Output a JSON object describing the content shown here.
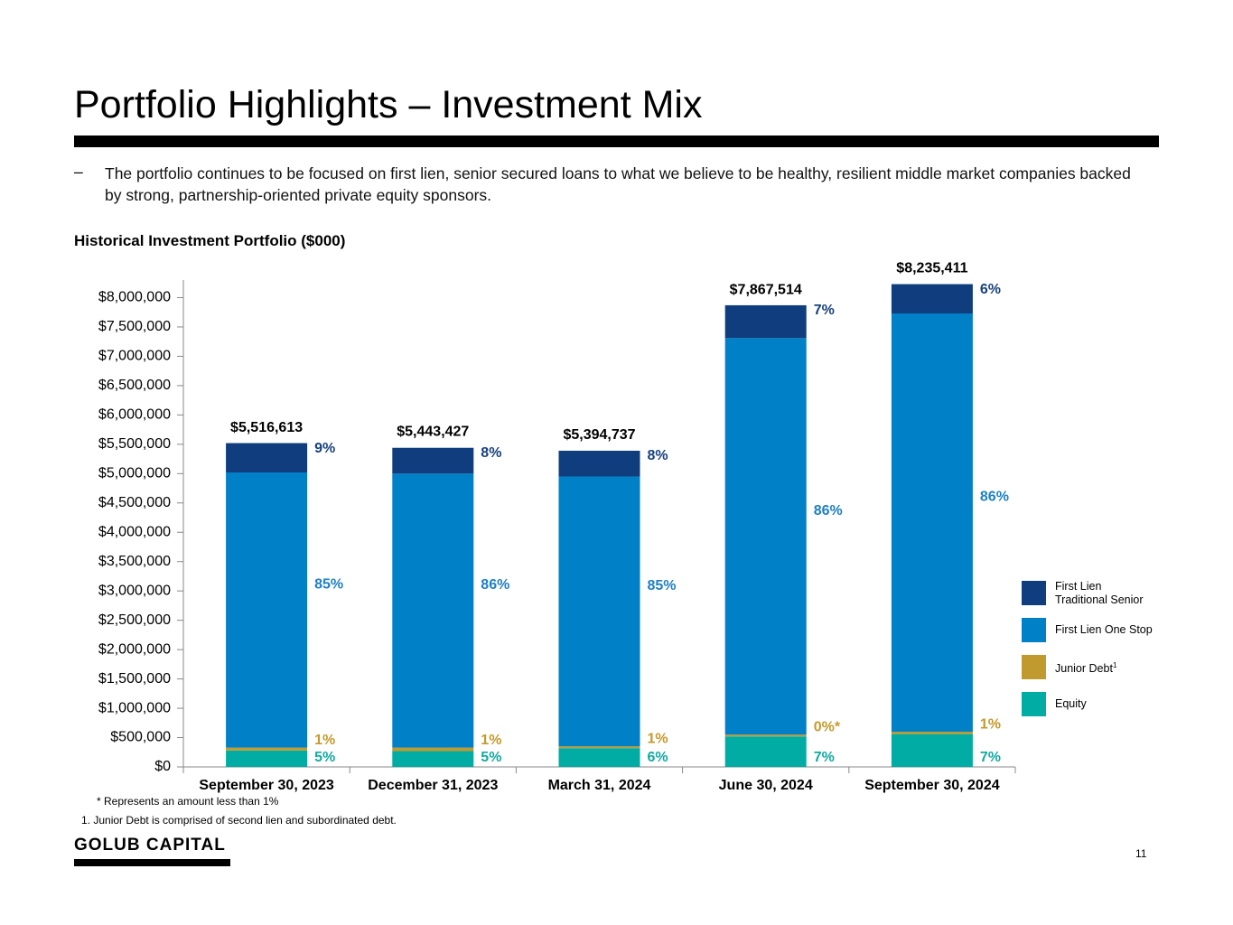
{
  "page": {
    "title": "Portfolio Highlights – Investment Mix",
    "bullet_mark": "–",
    "bullet": "The portfolio continues to be focused on first lien, senior secured loans to what we believe to be healthy, resilient middle market companies backed by strong, partnership-oriented private equity sponsors.",
    "footnote_star": "* Represents an amount less than 1%",
    "footnote_1": "1.  Junior Debt is comprised of second lien and subordinated debt.",
    "logo": "GOLUB CAPITAL",
    "page_number": "11"
  },
  "chart_data": {
    "type": "bar",
    "stacked": true,
    "title": "Historical Investment Portfolio ($000)",
    "categories": [
      "September 30, 2023",
      "December 31, 2023",
      "March 31, 2024",
      "June 30, 2024",
      "September 30, 2024"
    ],
    "totals": [
      5516613,
      5443427,
      5394737,
      7867514,
      8235411
    ],
    "total_labels": [
      "$5,516,613",
      "$5,443,427",
      "$5,394,737",
      "$7,867,514",
      "$8,235,411"
    ],
    "series": [
      {
        "name": "Equity",
        "color": "#00aca4",
        "label_color": "#13a9a0",
        "values": [
          280000,
          270000,
          320000,
          520000,
          560000
        ],
        "percent_labels": [
          "5%",
          "5%",
          "6%",
          "7%",
          "7%"
        ]
      },
      {
        "name": "Junior Debt",
        "footnote_ref": "1",
        "color": "#c09a2e",
        "label_color": "#c49a2c",
        "values": [
          50000,
          60000,
          30000,
          30000,
          40000
        ],
        "percent_labels": [
          "1%",
          "1%",
          "1%",
          "0%*",
          "1%"
        ]
      },
      {
        "name": "First Lien One Stop",
        "color": "#0080c6",
        "label_color": "#1f7fc6",
        "values": [
          4690000,
          4670000,
          4600000,
          6760000,
          7130000
        ],
        "percent_labels": [
          "85%",
          "86%",
          "85%",
          "86%",
          "86%"
        ]
      },
      {
        "name": "First Lien Traditional Senior",
        "color": "#0f3d7d",
        "label_color": "#17417e",
        "values": [
          500000,
          440000,
          440000,
          560000,
          500000
        ],
        "percent_labels": [
          "9%",
          "8%",
          "8%",
          "7%",
          "6%"
        ]
      }
    ],
    "ylim": [
      0,
      8300000
    ],
    "yticks": [
      {
        "value": 0,
        "label": "$0"
      },
      {
        "value": 500000,
        "label": "$500,000"
      },
      {
        "value": 1000000,
        "label": "$1,000,000"
      },
      {
        "value": 1500000,
        "label": "$1,500,000"
      },
      {
        "value": 2000000,
        "label": "$2,000,000"
      },
      {
        "value": 2500000,
        "label": "$2,500,000"
      },
      {
        "value": 3000000,
        "label": "$3,000,000"
      },
      {
        "value": 3500000,
        "label": "$3,500,000"
      },
      {
        "value": 4000000,
        "label": "$4,000,000"
      },
      {
        "value": 4500000,
        "label": "$4,500,000"
      },
      {
        "value": 5000000,
        "label": "$5,000,000"
      },
      {
        "value": 5500000,
        "label": "$5,500,000"
      },
      {
        "value": 6000000,
        "label": "$6,000,000"
      },
      {
        "value": 6500000,
        "label": "$6,500,000"
      },
      {
        "value": 7000000,
        "label": "$7,000,000"
      },
      {
        "value": 7500000,
        "label": "$7,500,000"
      },
      {
        "value": 8000000,
        "label": "$8,000,000"
      }
    ],
    "grid": false,
    "legend": "right"
  }
}
